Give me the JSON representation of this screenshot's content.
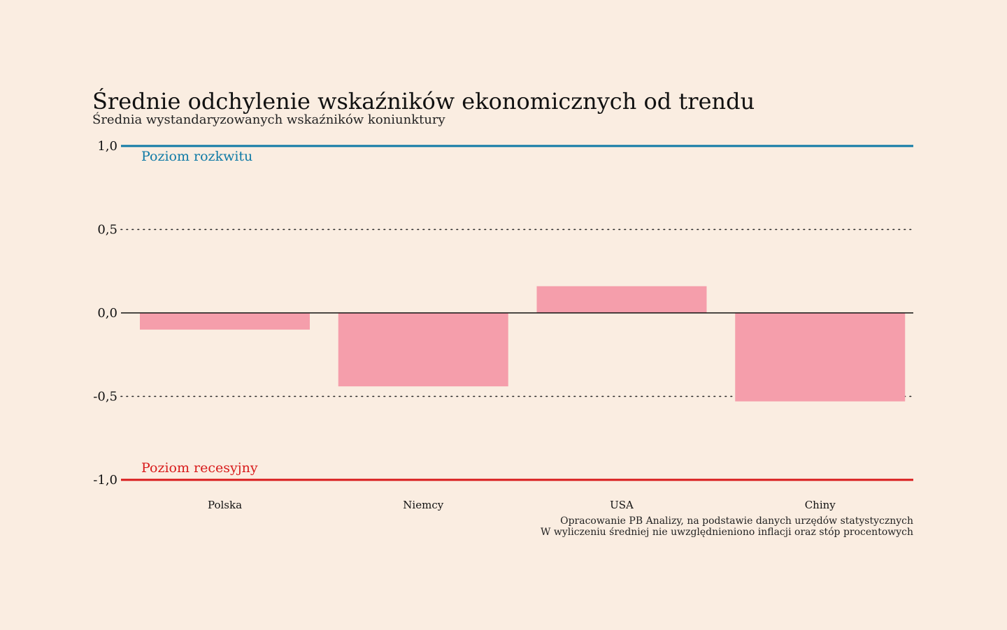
{
  "chart_data": {
    "type": "bar",
    "title": "Średnie odchylenie wskaźników ekonomicznych od trendu",
    "subtitle": "Średnia wystandaryzowanych wskaźników koniunktury",
    "categories": [
      "Polska",
      "Niemcy",
      "USA",
      "Chiny"
    ],
    "values": [
      -0.1,
      -0.44,
      0.16,
      -0.53
    ],
    "ylim": [
      -1.0,
      1.0
    ],
    "yticks": [
      1.0,
      0.5,
      0.0,
      -0.5,
      -1.0
    ],
    "ytick_labels": [
      "1,0",
      "0,5",
      "0,0",
      "-0,5",
      "-1,0"
    ],
    "reference_lines": [
      {
        "value": 1.0,
        "label": "Poziom rozkwitu",
        "color": "#0f7aa6"
      },
      {
        "value": -1.0,
        "label": "Poziom recesyjny",
        "color": "#d81b1b"
      }
    ],
    "gridlines": "dotted at ±0.5",
    "bar_color": "#f59eab",
    "notes": [
      "Opracowanie PB Analizy, na podstawie danych urzędów statystycznych",
      "W wyliczeniu średniej nie uwzględnieniono inflacji oraz stóp procentowych"
    ]
  }
}
